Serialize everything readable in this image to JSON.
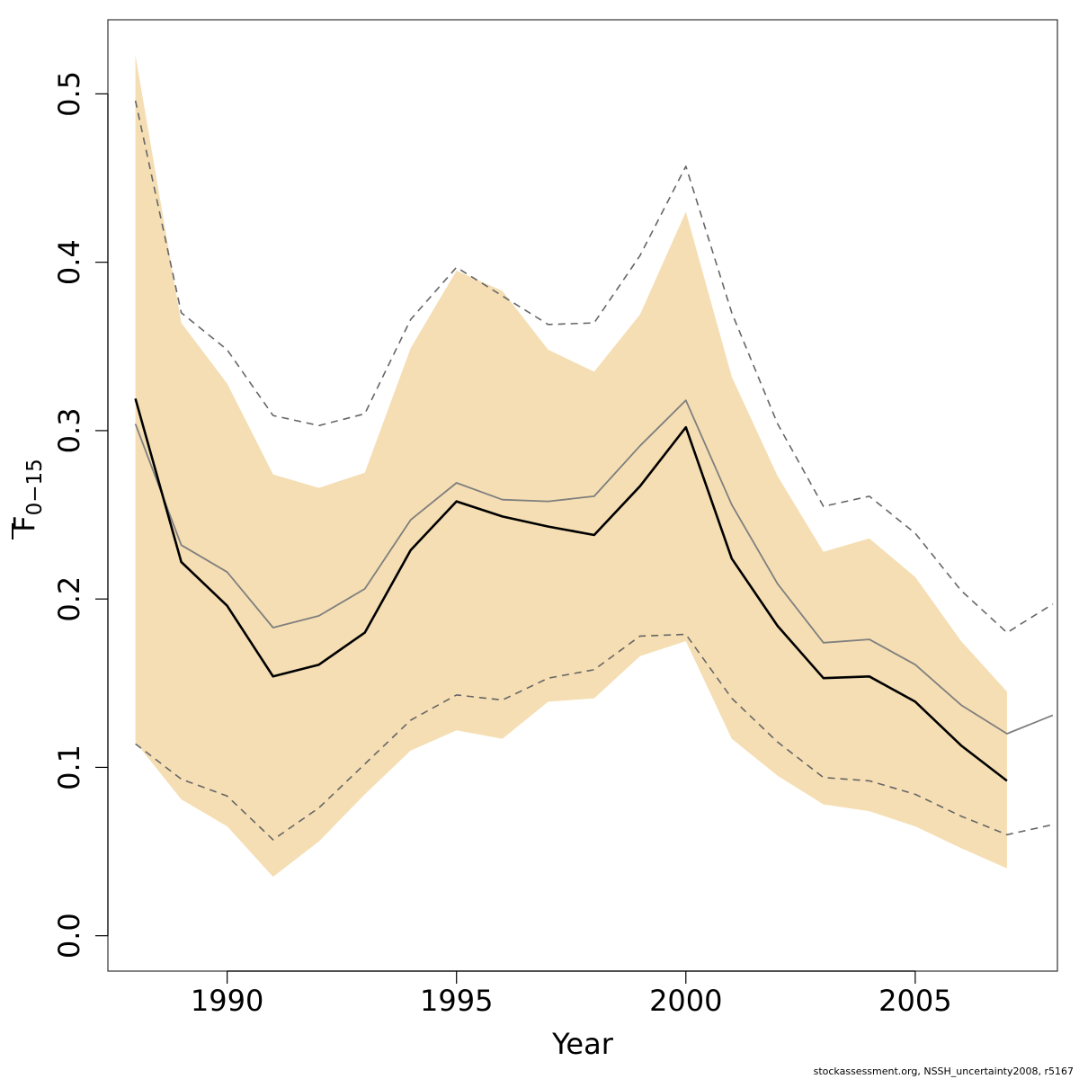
{
  "chart_data": {
    "type": "line",
    "xlabel": "Year",
    "ylabel_main": "F",
    "ylabel_sub": "0−15",
    "xlim": [
      1987.4,
      2008.1
    ],
    "ylim": [
      -0.021,
      0.544
    ],
    "xticks": [
      1990,
      1995,
      2000,
      2005
    ],
    "yticks": [
      0.0,
      0.1,
      0.2,
      0.3,
      0.4,
      0.5
    ],
    "ytick_labels": [
      "0.0",
      "0.1",
      "0.2",
      "0.3",
      "0.4",
      "0.5"
    ],
    "colors": {
      "band": "#f5deb3",
      "estimate": "#000000",
      "median": "#7f7f7f",
      "bounds": "#666666"
    },
    "band": {
      "x": [
        1988,
        1989,
        1990,
        1991,
        1992,
        1993,
        1994,
        1995,
        1996,
        1997,
        1998,
        1999,
        2000,
        2001,
        2002,
        2003,
        2004,
        2005,
        2006,
        2007
      ],
      "upper": [
        0.523,
        0.364,
        0.328,
        0.274,
        0.266,
        0.275,
        0.349,
        0.395,
        0.383,
        0.348,
        0.335,
        0.369,
        0.43,
        0.332,
        0.273,
        0.228,
        0.236,
        0.213,
        0.175,
        0.145
      ],
      "lower": [
        0.115,
        0.081,
        0.065,
        0.035,
        0.056,
        0.084,
        0.11,
        0.122,
        0.117,
        0.139,
        0.141,
        0.166,
        0.175,
        0.117,
        0.095,
        0.078,
        0.074,
        0.065,
        0.052,
        0.04
      ]
    },
    "series": [
      {
        "role": "estimate",
        "x": [
          1988,
          1989,
          1990,
          1991,
          1992,
          1993,
          1994,
          1995,
          1996,
          1997,
          1998,
          1999,
          2000,
          2001,
          2002,
          2003,
          2004,
          2005,
          2006,
          2007
        ],
        "values": [
          0.319,
          0.222,
          0.196,
          0.154,
          0.161,
          0.18,
          0.229,
          0.258,
          0.249,
          0.243,
          0.238,
          0.267,
          0.302,
          0.224,
          0.184,
          0.153,
          0.154,
          0.139,
          0.113,
          0.092
        ]
      },
      {
        "role": "median",
        "x": [
          1988,
          1989,
          1990,
          1991,
          1992,
          1993,
          1994,
          1995,
          1996,
          1997,
          1998,
          1999,
          2000,
          2001,
          2002,
          2003,
          2004,
          2005,
          2006,
          2007,
          2008
        ],
        "values": [
          0.304,
          0.232,
          0.216,
          0.183,
          0.19,
          0.206,
          0.247,
          0.269,
          0.259,
          0.258,
          0.261,
          0.291,
          0.318,
          0.256,
          0.209,
          0.174,
          0.176,
          0.161,
          0.137,
          0.12,
          0.131
        ]
      },
      {
        "role": "upper-bound",
        "dashed": true,
        "x": [
          1988,
          1989,
          1990,
          1991,
          1992,
          1993,
          1994,
          1995,
          1996,
          1997,
          1998,
          1999,
          2000,
          2001,
          2002,
          2003,
          2004,
          2005,
          2006,
          2007,
          2008
        ],
        "values": [
          0.496,
          0.37,
          0.348,
          0.309,
          0.303,
          0.31,
          0.366,
          0.397,
          0.38,
          0.363,
          0.364,
          0.404,
          0.457,
          0.37,
          0.304,
          0.255,
          0.261,
          0.239,
          0.205,
          0.18,
          0.197
        ]
      },
      {
        "role": "lower-bound",
        "dashed": true,
        "x": [
          1988,
          1989,
          1990,
          1991,
          1992,
          1993,
          1994,
          1995,
          1996,
          1997,
          1998,
          1999,
          2000,
          2001,
          2002,
          2003,
          2004,
          2005,
          2006,
          2007,
          2008
        ],
        "values": [
          0.114,
          0.093,
          0.083,
          0.057,
          0.076,
          0.102,
          0.128,
          0.143,
          0.14,
          0.153,
          0.158,
          0.178,
          0.179,
          0.141,
          0.115,
          0.094,
          0.092,
          0.084,
          0.071,
          0.06,
          0.066
        ]
      }
    ]
  },
  "footer": {
    "credit": "stockassessment.org, NSSH_uncertainty2008, r5167"
  }
}
